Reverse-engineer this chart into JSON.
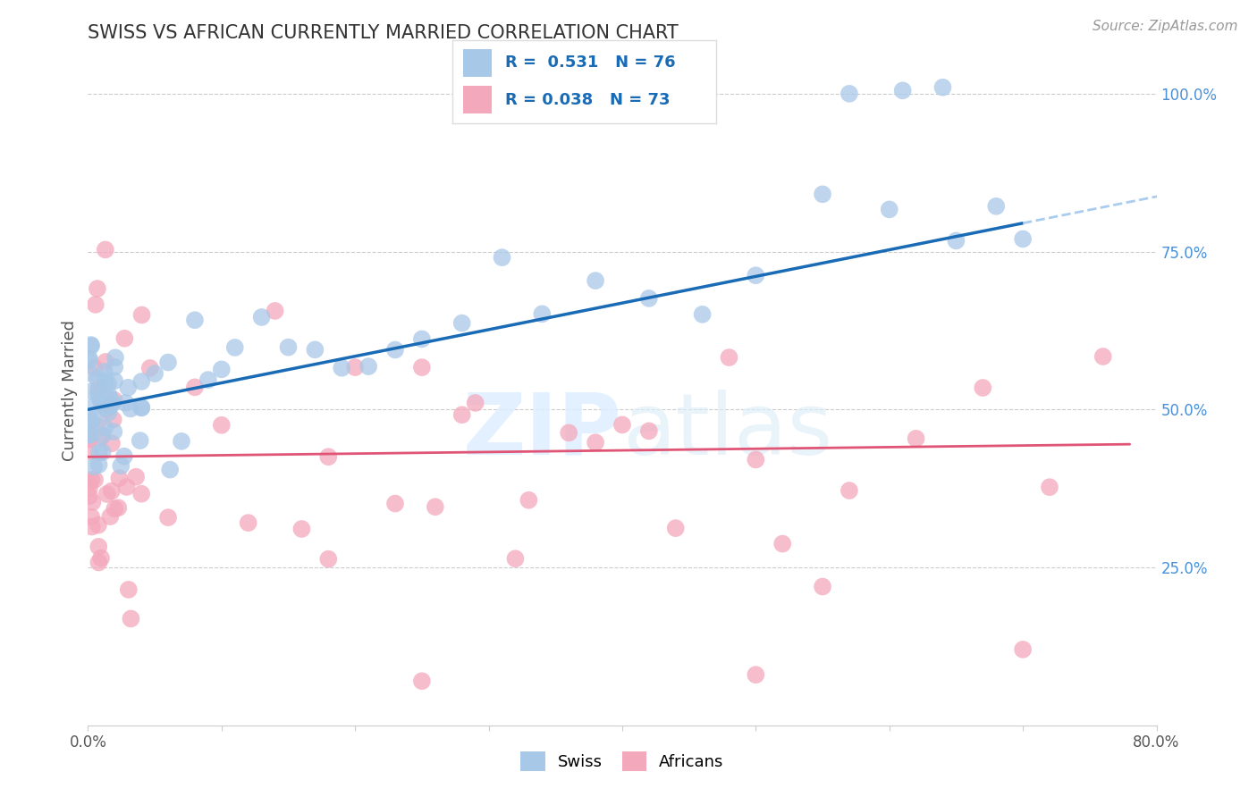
{
  "title": "SWISS VS AFRICAN CURRENTLY MARRIED CORRELATION CHART",
  "source": "Source: ZipAtlas.com",
  "ylabel": "Currently Married",
  "xlim": [
    0.0,
    0.8
  ],
  "ylim": [
    0.0,
    1.06
  ],
  "ytick_labels_right": [
    "25.0%",
    "50.0%",
    "75.0%",
    "100.0%"
  ],
  "ytick_vals_right": [
    0.25,
    0.5,
    0.75,
    1.0
  ],
  "legend_r_swiss": "R =  0.531",
  "legend_n_swiss": "N = 76",
  "legend_r_african": "R = 0.038",
  "legend_n_african": "N = 73",
  "swiss_color": "#a8c8e8",
  "african_color": "#f4a8bc",
  "swiss_line_color": "#1a6bb5",
  "african_line_color": "#e05575",
  "dash_color": "#aaccee",
  "background_color": "#ffffff",
  "swiss_line_x0": 0.0,
  "swiss_line_y0": 0.5,
  "swiss_line_x1": 0.7,
  "swiss_line_y1": 0.795,
  "african_line_x0": 0.0,
  "african_line_y0": 0.425,
  "african_line_x1": 0.78,
  "african_line_y1": 0.445
}
